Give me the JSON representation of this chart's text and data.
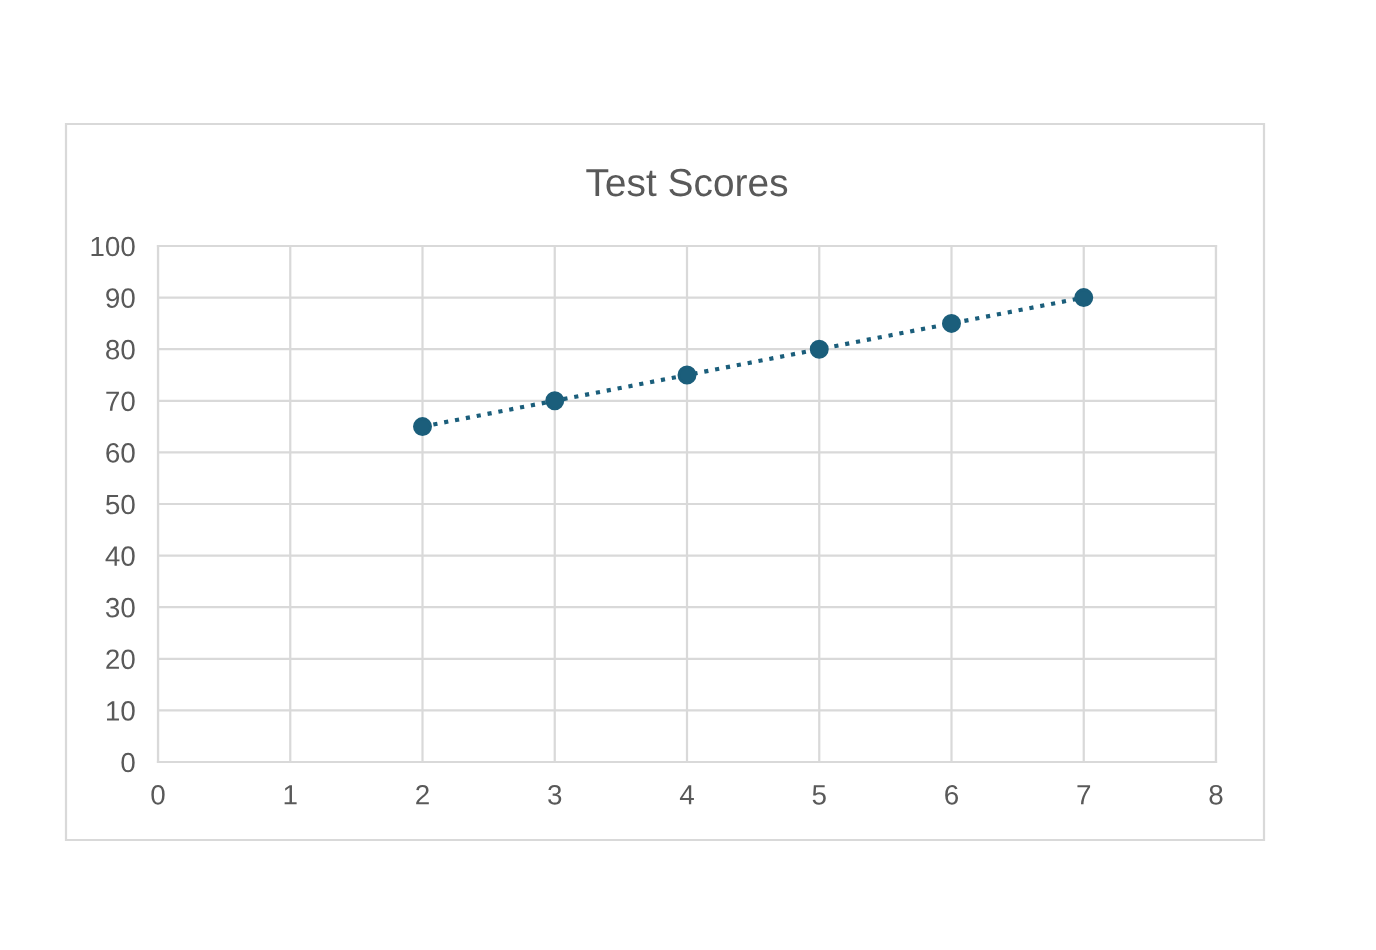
{
  "chart_data": {
    "type": "scatter",
    "title": "Test Scores",
    "series": [
      {
        "color": "#1b5e7b",
        "x": [
          2,
          3,
          4,
          5,
          6,
          7
        ],
        "values": [
          65,
          70,
          75,
          80,
          85,
          90
        ],
        "marker": "circle"
      },
      {
        "type": "line",
        "color": "#1b5e7b",
        "x": [
          2,
          7
        ],
        "values": [
          65,
          90
        ],
        "line_style": "dotted",
        "marker": "none"
      }
    ],
    "xlim": [
      0,
      8
    ],
    "xticks": [
      0,
      1,
      2,
      3,
      4,
      5,
      6,
      7,
      8
    ],
    "ylim": [
      0,
      100
    ],
    "yticks": [
      0,
      10,
      20,
      30,
      40,
      50,
      60,
      70,
      80,
      90,
      100
    ],
    "grid": true,
    "legend": false
  }
}
